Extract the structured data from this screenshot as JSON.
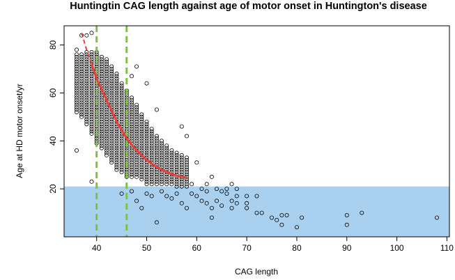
{
  "chart_data": {
    "type": "scatter",
    "title": "Huntingtin CAG length against age of motor onset in Huntington's disease",
    "xlabel": "CAG length",
    "ylabel": "Age at HD motor onset/yr",
    "xlim": [
      33.5,
      110.5
    ],
    "ylim": [
      0,
      88
    ],
    "x_ticks": [
      40,
      50,
      60,
      70,
      80,
      90,
      100,
      110
    ],
    "y_ticks": [
      20,
      40,
      60,
      80
    ],
    "grid": false,
    "legend": "none",
    "colors": {
      "points": "#000000",
      "fit_curve": "#e8403c",
      "threshold_lines": "#7dc242",
      "shaded_region": "#a9d0ee"
    },
    "shaded_region": {
      "y_from": 0,
      "y_to": 21,
      "x_from": 33.5,
      "x_to": 110.5
    },
    "threshold_lines_x": [
      40,
      46
    ],
    "fit_curve": {
      "x": [
        37,
        38,
        39,
        40,
        42,
        44,
        46,
        48,
        50,
        52,
        54,
        56,
        58
      ],
      "y": [
        85,
        78,
        72,
        66,
        57,
        48,
        41,
        36,
        32,
        29,
        27,
        25.5,
        24.5
      ]
    },
    "point_summary": {
      "dense_band": {
        "x_from": 36,
        "x_to": 58,
        "centre_y": [
          [
            36,
            64
          ],
          [
            38,
            62
          ],
          [
            40,
            58
          ],
          [
            42,
            54
          ],
          [
            44,
            48
          ],
          [
            46,
            43
          ],
          [
            48,
            40
          ],
          [
            50,
            35
          ],
          [
            52,
            32
          ],
          [
            54,
            30
          ],
          [
            56,
            28
          ],
          [
            58,
            27
          ]
        ],
        "half_height": [
          [
            36,
            12
          ],
          [
            38,
            15
          ],
          [
            40,
            19
          ],
          [
            42,
            20
          ],
          [
            44,
            20
          ],
          [
            46,
            18
          ],
          [
            48,
            15
          ],
          [
            50,
            13
          ],
          [
            52,
            10
          ],
          [
            54,
            8
          ],
          [
            56,
            7
          ],
          [
            58,
            6
          ]
        ]
      }
    },
    "points": [
      {
        "x": 36,
        "y": 36
      },
      {
        "x": 36,
        "y": 78
      },
      {
        "x": 37,
        "y": 84
      },
      {
        "x": 38,
        "y": 84
      },
      {
        "x": 39,
        "y": 23
      },
      {
        "x": 39,
        "y": 85
      },
      {
        "x": 45,
        "y": 18
      },
      {
        "x": 47,
        "y": 19
      },
      {
        "x": 47,
        "y": 67
      },
      {
        "x": 48,
        "y": 15
      },
      {
        "x": 48,
        "y": 71
      },
      {
        "x": 49,
        "y": 12
      },
      {
        "x": 50,
        "y": 64
      },
      {
        "x": 50,
        "y": 18
      },
      {
        "x": 51,
        "y": 17
      },
      {
        "x": 52,
        "y": 6
      },
      {
        "x": 52,
        "y": 53
      },
      {
        "x": 53,
        "y": 19
      },
      {
        "x": 54,
        "y": 17
      },
      {
        "x": 55,
        "y": 16
      },
      {
        "x": 56,
        "y": 18
      },
      {
        "x": 57,
        "y": 46
      },
      {
        "x": 57,
        "y": 14
      },
      {
        "x": 58,
        "y": 42
      },
      {
        "x": 58,
        "y": 12
      },
      {
        "x": 59,
        "y": 22
      },
      {
        "x": 59,
        "y": 18
      },
      {
        "x": 60,
        "y": 17
      },
      {
        "x": 60,
        "y": 31
      },
      {
        "x": 61,
        "y": 15
      },
      {
        "x": 61,
        "y": 20
      },
      {
        "x": 62,
        "y": 19
      },
      {
        "x": 62,
        "y": 22
      },
      {
        "x": 62,
        "y": 14
      },
      {
        "x": 63,
        "y": 25
      },
      {
        "x": 63,
        "y": 12
      },
      {
        "x": 63,
        "y": 8
      },
      {
        "x": 64,
        "y": 20
      },
      {
        "x": 64,
        "y": 15
      },
      {
        "x": 65,
        "y": 19
      },
      {
        "x": 65,
        "y": 13
      },
      {
        "x": 66,
        "y": 18
      },
      {
        "x": 66,
        "y": 20
      },
      {
        "x": 67,
        "y": 22
      },
      {
        "x": 67,
        "y": 15
      },
      {
        "x": 67,
        "y": 12
      },
      {
        "x": 68,
        "y": 20
      },
      {
        "x": 68,
        "y": 17
      },
      {
        "x": 68,
        "y": 14
      },
      {
        "x": 70,
        "y": 17
      },
      {
        "x": 70,
        "y": 14
      },
      {
        "x": 70,
        "y": 12
      },
      {
        "x": 72,
        "y": 17
      },
      {
        "x": 72,
        "y": 10
      },
      {
        "x": 73,
        "y": 10
      },
      {
        "x": 75,
        "y": 8
      },
      {
        "x": 76,
        "y": 7
      },
      {
        "x": 77,
        "y": 5
      },
      {
        "x": 77,
        "y": 9
      },
      {
        "x": 78,
        "y": 9
      },
      {
        "x": 80,
        "y": 4
      },
      {
        "x": 81,
        "y": 8
      },
      {
        "x": 90,
        "y": 5
      },
      {
        "x": 90,
        "y": 9
      },
      {
        "x": 93,
        "y": 10
      },
      {
        "x": 108,
        "y": 8
      }
    ]
  }
}
